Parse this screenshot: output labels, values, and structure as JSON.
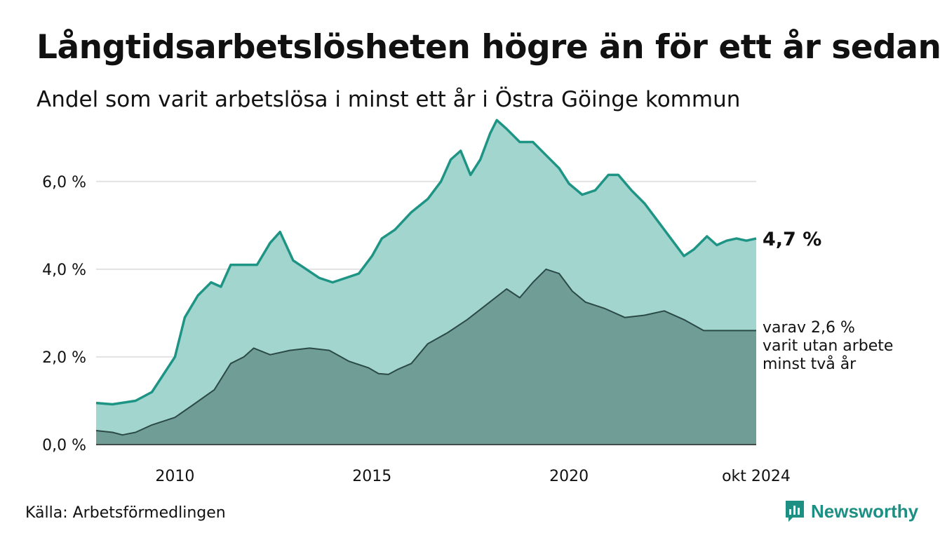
{
  "header": {
    "title": "Långtidsarbetslösheten högre än för ett år sedan",
    "subtitle": "Andel som varit arbetslösa i minst ett år i Östra Göinge kommun"
  },
  "footer": {
    "source": "Källa: Arbetsförmedlingen",
    "brand": "Newsworthy",
    "brand_icon": "bar-chart-icon"
  },
  "colors": {
    "total_fill": "#a3d5cf",
    "total_line": "#1e9485",
    "long_fill": "#709e97",
    "long_line": "#2b4a46",
    "grid": "#e2e2e2",
    "brand": "#1d8f83"
  },
  "chart_data": {
    "type": "area",
    "title": "Långtidsarbetslösheten högre än för ett år sedan",
    "subtitle": "Andel som varit arbetslösa i minst ett år i Östra Göinge kommun",
    "xlabel": "",
    "ylabel": "",
    "xlim": [
      "2008-01",
      "2024-10"
    ],
    "ylim": [
      0,
      7.5
    ],
    "grid": "horizontal",
    "legend": "none",
    "x_ticks": [
      {
        "x": "2010-01",
        "label": "2010"
      },
      {
        "x": "2015-01",
        "label": "2015"
      },
      {
        "x": "2020-01",
        "label": "2020"
      },
      {
        "x": "2024-10",
        "label": "okt 2024"
      }
    ],
    "y_ticks": [
      {
        "y": 0,
        "label": "0,0 %"
      },
      {
        "y": 2,
        "label": "2,0 %"
      },
      {
        "y": 4,
        "label": "4,0 %"
      },
      {
        "y": 6,
        "label": "6,0 %"
      }
    ],
    "series": [
      {
        "key": "total",
        "points": [
          [
            "2008-01",
            0.95
          ],
          [
            "2008-06",
            0.92
          ],
          [
            "2009-01",
            1.0
          ],
          [
            "2009-06",
            1.2
          ],
          [
            "2010-01",
            2.0
          ],
          [
            "2010-04",
            2.9
          ],
          [
            "2010-08",
            3.4
          ],
          [
            "2010-12",
            3.7
          ],
          [
            "2011-03",
            3.6
          ],
          [
            "2011-06",
            4.1
          ],
          [
            "2011-10",
            4.1
          ],
          [
            "2012-02",
            4.1
          ],
          [
            "2012-06",
            4.6
          ],
          [
            "2012-09",
            4.85
          ],
          [
            "2013-01",
            4.2
          ],
          [
            "2013-05",
            4.0
          ],
          [
            "2013-09",
            3.8
          ],
          [
            "2014-01",
            3.7
          ],
          [
            "2014-05",
            3.8
          ],
          [
            "2014-09",
            3.9
          ],
          [
            "2015-01",
            4.3
          ],
          [
            "2015-04",
            4.7
          ],
          [
            "2015-08",
            4.9
          ],
          [
            "2016-01",
            5.3
          ],
          [
            "2016-06",
            5.6
          ],
          [
            "2016-10",
            6.0
          ],
          [
            "2017-01",
            6.5
          ],
          [
            "2017-04",
            6.7
          ],
          [
            "2017-07",
            6.15
          ],
          [
            "2017-10",
            6.5
          ],
          [
            "2018-01",
            7.1
          ],
          [
            "2018-03",
            7.4
          ],
          [
            "2018-06",
            7.2
          ],
          [
            "2018-10",
            6.9
          ],
          [
            "2019-02",
            6.9
          ],
          [
            "2019-06",
            6.6
          ],
          [
            "2019-10",
            6.3
          ],
          [
            "2020-01",
            5.95
          ],
          [
            "2020-05",
            5.7
          ],
          [
            "2020-09",
            5.8
          ],
          [
            "2021-01",
            6.15
          ],
          [
            "2021-04",
            6.15
          ],
          [
            "2021-08",
            5.8
          ],
          [
            "2021-12",
            5.5
          ],
          [
            "2022-04",
            5.1
          ],
          [
            "2022-08",
            4.7
          ],
          [
            "2022-12",
            4.3
          ],
          [
            "2023-03",
            4.45
          ],
          [
            "2023-07",
            4.75
          ],
          [
            "2023-10",
            4.55
          ],
          [
            "2024-01",
            4.65
          ],
          [
            "2024-04",
            4.7
          ],
          [
            "2024-07",
            4.65
          ],
          [
            "2024-10",
            4.7
          ]
        ],
        "end_label": "4,7 %"
      },
      {
        "key": "long",
        "points": [
          [
            "2008-01",
            0.32
          ],
          [
            "2008-06",
            0.28
          ],
          [
            "2008-09",
            0.22
          ],
          [
            "2009-01",
            0.28
          ],
          [
            "2009-06",
            0.45
          ],
          [
            "2010-01",
            0.62
          ],
          [
            "2010-06",
            0.88
          ],
          [
            "2011-01",
            1.25
          ],
          [
            "2011-06",
            1.85
          ],
          [
            "2011-10",
            2.0
          ],
          [
            "2012-01",
            2.2
          ],
          [
            "2012-06",
            2.05
          ],
          [
            "2012-12",
            2.15
          ],
          [
            "2013-06",
            2.2
          ],
          [
            "2013-12",
            2.15
          ],
          [
            "2014-06",
            1.9
          ],
          [
            "2014-12",
            1.75
          ],
          [
            "2015-03",
            1.62
          ],
          [
            "2015-06",
            1.6
          ],
          [
            "2015-09",
            1.72
          ],
          [
            "2016-01",
            1.85
          ],
          [
            "2016-06",
            2.3
          ],
          [
            "2016-12",
            2.55
          ],
          [
            "2017-06",
            2.85
          ],
          [
            "2017-12",
            3.2
          ],
          [
            "2018-06",
            3.55
          ],
          [
            "2018-10",
            3.35
          ],
          [
            "2019-02",
            3.7
          ],
          [
            "2019-06",
            4.0
          ],
          [
            "2019-10",
            3.9
          ],
          [
            "2020-02",
            3.5
          ],
          [
            "2020-06",
            3.25
          ],
          [
            "2020-12",
            3.1
          ],
          [
            "2021-06",
            2.9
          ],
          [
            "2021-12",
            2.95
          ],
          [
            "2022-06",
            3.05
          ],
          [
            "2022-12",
            2.85
          ],
          [
            "2023-06",
            2.6
          ],
          [
            "2023-12",
            2.6
          ],
          [
            "2024-06",
            2.6
          ],
          [
            "2024-10",
            2.6
          ]
        ],
        "end_label": [
          "varav 2,6 %",
          "varit utan arbete",
          "minst två år"
        ]
      }
    ]
  }
}
